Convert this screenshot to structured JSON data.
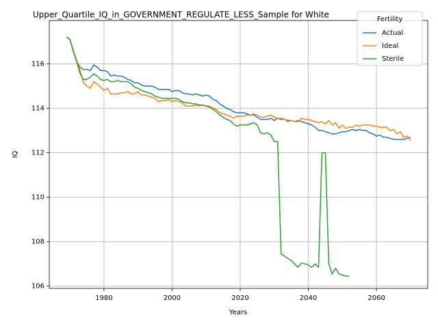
{
  "chart_data": {
    "type": "line",
    "title": "Upper_Quartile_IQ_in_GOVERNMENT_REGULATE_LESS_Sample for White",
    "x_label": "Years",
    "y_label": "IQ",
    "legend_title": "Fertility",
    "legend": "upper right",
    "grid": true,
    "xlim": [
      1963.95,
      2075.05
    ],
    "xticks": [
      1980,
      2000,
      2020,
      2040,
      2060
    ],
    "ylim": [
      105.9,
      117.95
    ],
    "yticks": [
      106,
      108,
      110,
      112,
      114,
      116
    ],
    "x": [
      1969,
      1970,
      1971,
      1972,
      1973,
      1974,
      1975,
      1976,
      1977,
      1978,
      1979,
      1980,
      1981,
      1982,
      1983,
      1984,
      1985,
      1986,
      1987,
      1988,
      1989,
      1990,
      1991,
      1992,
      1993,
      1994,
      1995,
      1996,
      1997,
      1998,
      1999,
      2000,
      2001,
      2002,
      2003,
      2004,
      2005,
      2006,
      2007,
      2008,
      2009,
      2010,
      2011,
      2012,
      2013,
      2014,
      2015,
      2016,
      2017,
      2018,
      2019,
      2020,
      2021,
      2022,
      2023,
      2024,
      2025,
      2026,
      2027,
      2028,
      2029,
      2030,
      2031,
      2032,
      2033,
      2034,
      2035,
      2036,
      2037,
      2038,
      2039,
      2040,
      2041,
      2042,
      2043,
      2044,
      2045,
      2046,
      2047,
      2048,
      2049,
      2050,
      2051,
      2052,
      2053,
      2054,
      2055,
      2056,
      2057,
      2058,
      2059,
      2060,
      2061,
      2062,
      2063,
      2064,
      2065,
      2066,
      2067,
      2068,
      2069,
      2070
    ],
    "series": [
      {
        "name": "Actual",
        "color": "#1f77b4",
        "values": [
          117.2,
          117.1,
          116.6,
          116.1,
          115.85,
          115.75,
          115.75,
          115.7,
          115.95,
          115.85,
          115.7,
          115.7,
          115.65,
          115.45,
          115.5,
          115.45,
          115.45,
          115.4,
          115.3,
          115.25,
          115.15,
          115.15,
          115.05,
          115.0,
          115.0,
          115.0,
          114.95,
          114.85,
          114.85,
          114.85,
          114.85,
          114.75,
          114.8,
          114.8,
          114.7,
          114.65,
          114.65,
          114.6,
          114.65,
          114.6,
          114.55,
          114.6,
          114.55,
          114.4,
          114.35,
          114.2,
          114.1,
          114.0,
          113.95,
          113.85,
          113.8,
          113.8,
          113.8,
          113.75,
          113.7,
          113.7,
          113.6,
          113.5,
          113.5,
          113.5,
          113.55,
          113.45,
          113.55,
          113.5,
          113.5,
          113.45,
          113.45,
          113.4,
          113.45,
          113.4,
          113.35,
          113.3,
          113.25,
          113.15,
          113.0,
          113.0,
          112.95,
          112.9,
          112.85,
          112.85,
          112.9,
          112.95,
          112.95,
          113.0,
          113.05,
          113.0,
          113.05,
          113.0,
          113.0,
          112.9,
          112.85,
          112.75,
          112.8,
          112.7,
          112.7,
          112.65,
          112.6,
          112.6,
          112.6,
          112.6,
          112.65,
          112.7
        ]
      },
      {
        "name": "Ideal",
        "color": "#ff7f0e",
        "values": [
          117.2,
          117.1,
          116.6,
          116.15,
          115.7,
          115.15,
          115.0,
          114.9,
          115.2,
          115.1,
          114.95,
          114.8,
          114.9,
          114.65,
          114.65,
          114.65,
          114.7,
          114.7,
          114.75,
          114.65,
          114.65,
          114.75,
          114.6,
          114.6,
          114.55,
          114.5,
          114.45,
          114.3,
          114.35,
          114.35,
          114.4,
          114.3,
          114.35,
          114.3,
          114.25,
          114.1,
          114.1,
          114.1,
          114.15,
          114.1,
          114.15,
          114.1,
          114.1,
          114.0,
          113.95,
          113.8,
          113.75,
          113.7,
          113.65,
          113.55,
          113.65,
          113.65,
          113.65,
          113.7,
          113.7,
          113.75,
          113.7,
          113.6,
          113.6,
          113.65,
          113.7,
          113.6,
          113.55,
          113.55,
          113.5,
          113.4,
          113.45,
          113.4,
          113.4,
          113.55,
          113.5,
          113.5,
          113.45,
          113.4,
          113.35,
          113.4,
          113.3,
          113.45,
          113.25,
          113.35,
          113.1,
          113.25,
          113.1,
          113.15,
          113.15,
          113.25,
          113.2,
          113.25,
          113.25,
          113.25,
          113.2,
          113.2,
          113.15,
          113.15,
          113.15,
          113.0,
          113.05,
          112.85,
          112.95,
          112.7,
          112.75,
          112.55
        ]
      },
      {
        "name": "Sterile",
        "color": "#2ca02c",
        "values": [
          117.2,
          117.1,
          116.55,
          116.1,
          115.55,
          115.3,
          115.3,
          115.4,
          115.55,
          115.45,
          115.3,
          115.25,
          115.3,
          115.2,
          115.2,
          115.25,
          115.2,
          115.2,
          115.2,
          115.1,
          114.95,
          114.9,
          114.8,
          114.75,
          114.7,
          114.65,
          114.55,
          114.5,
          114.45,
          114.45,
          114.45,
          114.45,
          114.45,
          114.4,
          114.3,
          114.25,
          114.25,
          114.2,
          114.2,
          114.15,
          114.15,
          114.1,
          114.05,
          113.95,
          113.85,
          113.7,
          113.6,
          113.5,
          113.45,
          113.3,
          113.2,
          113.25,
          113.25,
          113.25,
          113.3,
          113.35,
          113.25,
          112.9,
          112.85,
          112.9,
          112.8,
          112.5,
          112.5,
          107.45,
          107.35,
          107.25,
          107.15,
          107.0,
          106.85,
          107.05,
          107.0,
          106.95,
          106.85,
          107.0,
          106.85,
          112.0,
          112.0,
          107.0,
          106.55,
          106.8,
          106.55,
          106.5,
          106.45,
          106.45,
          null,
          null,
          null,
          null,
          null,
          null,
          null,
          null,
          null,
          null,
          null,
          null,
          null,
          null,
          null,
          null,
          null,
          null
        ]
      }
    ]
  }
}
